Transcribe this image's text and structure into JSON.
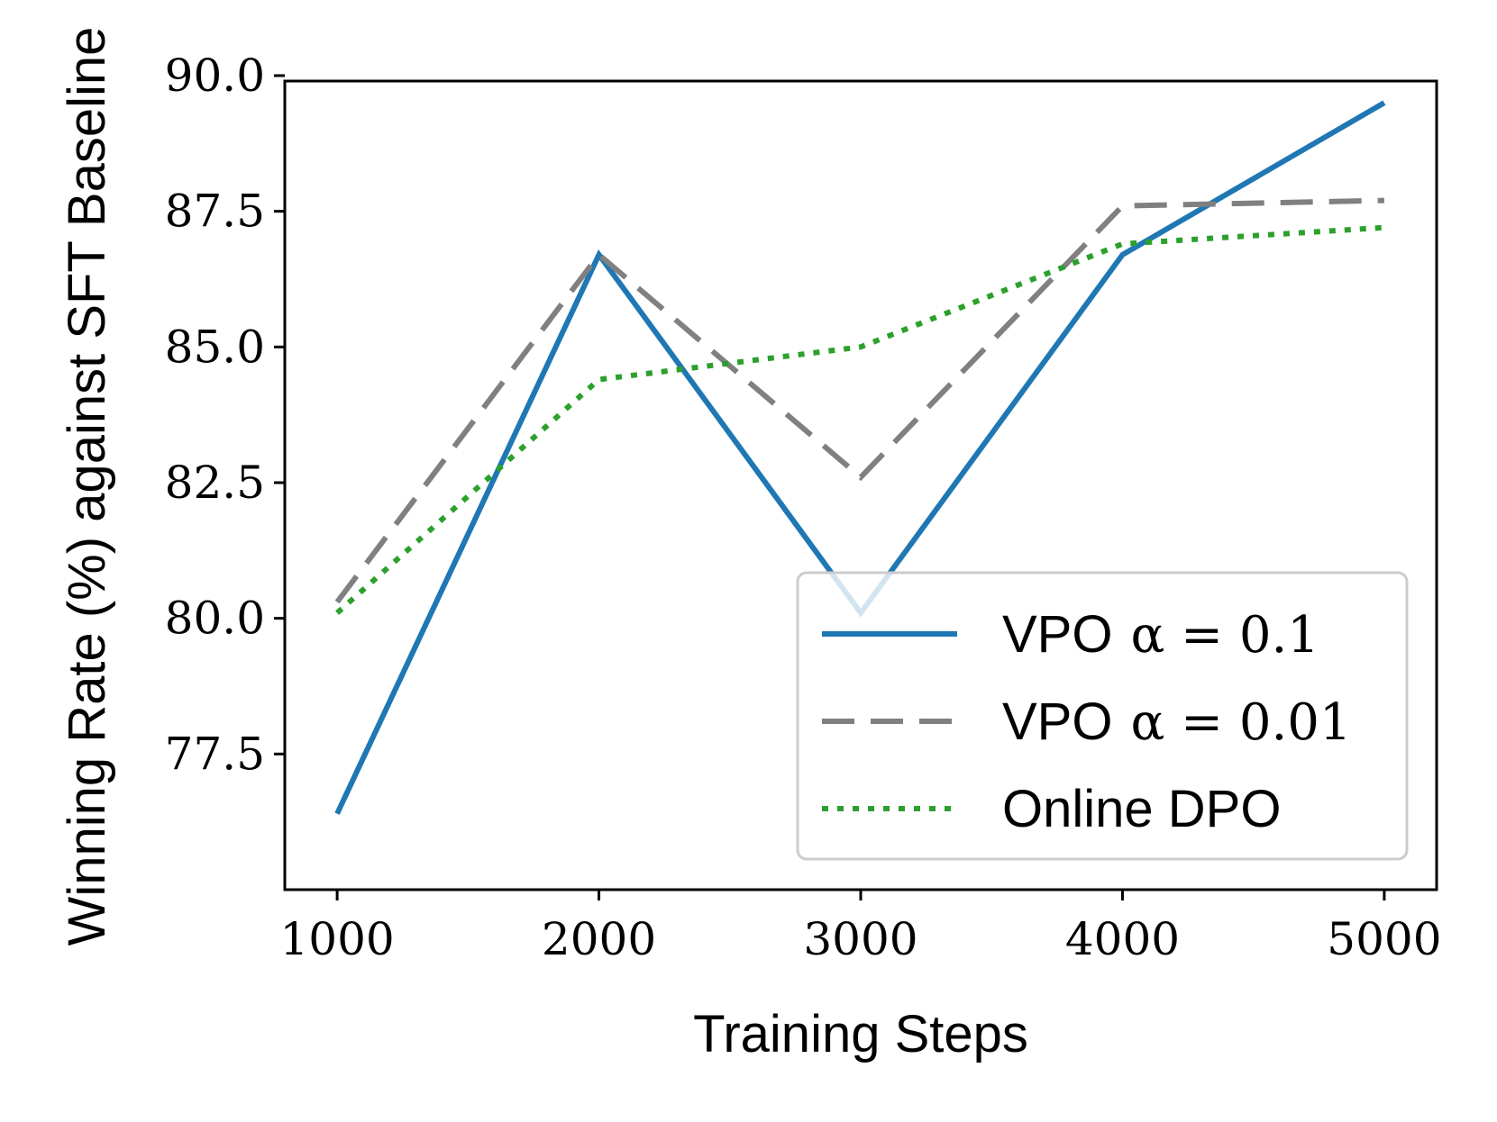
{
  "chart_data": {
    "type": "line",
    "title": "",
    "xlabel": "Training Steps",
    "ylabel": "Winning Rate (%) against SFT Baseline",
    "x": [
      1000,
      2000,
      3000,
      4000,
      5000
    ],
    "xlim": [
      800,
      5200
    ],
    "ylim": [
      75.0,
      89.9
    ],
    "x_ticks": [
      "1000",
      "2000",
      "3000",
      "4000",
      "5000"
    ],
    "y_ticks": [
      "77.5",
      "80.0",
      "82.5",
      "85.0",
      "87.5",
      "90.0"
    ],
    "grid": false,
    "legend_position": "lower-right",
    "series": [
      {
        "name": "VPO",
        "name_math": "α = 0.1",
        "color": "#1f77b4",
        "style": "solid",
        "values": [
          76.4,
          86.7,
          80.1,
          86.7,
          89.5
        ]
      },
      {
        "name": "VPO",
        "name_math": "α = 0.01",
        "color": "#808080",
        "style": "dashed",
        "values": [
          80.3,
          86.7,
          82.6,
          87.6,
          87.7
        ]
      },
      {
        "name": "Online DPO",
        "name_math": "",
        "color": "#2ca02c",
        "style": "dotted",
        "values": [
          80.1,
          84.4,
          85.0,
          86.9,
          87.2
        ]
      }
    ]
  }
}
